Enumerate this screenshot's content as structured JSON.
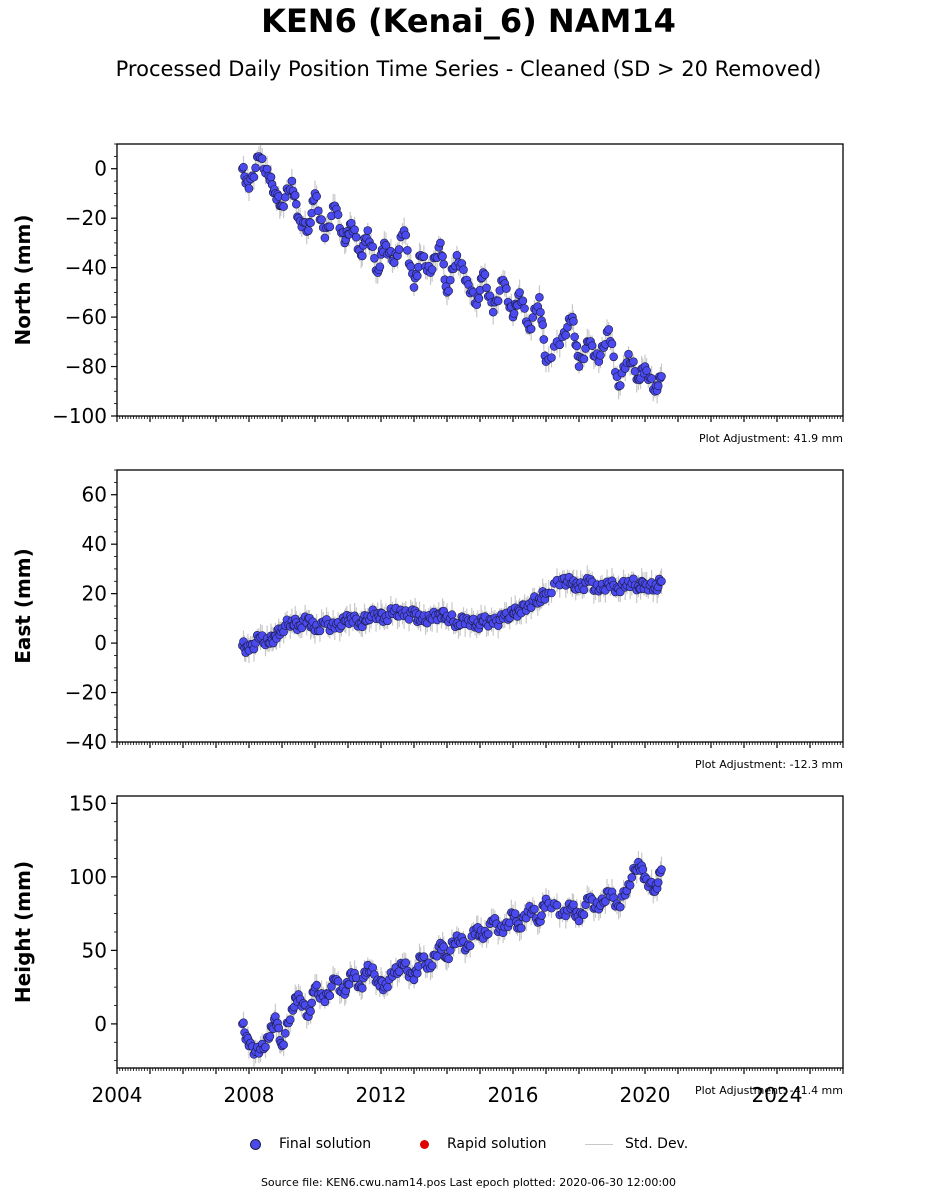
{
  "title": "KEN6 (Kenai_6) NAM14",
  "subtitle": "Processed Daily Position Time Series - Cleaned (SD > 20 Removed)",
  "legend": {
    "final": "Final solution",
    "rapid": "Rapid solution",
    "std": "Std. Dev."
  },
  "source": "Source file: KEN6.cwu.nam14.pos  Last epoch plotted: 2020-06-30 12:00:00",
  "colors": {
    "final": "#4a4af0",
    "rapid": "#e00000",
    "std": "#c8c8c8",
    "edge": "#1a1a3a"
  },
  "chart_data": [
    {
      "type": "scatter",
      "ylabel": "North (mm)",
      "xlim": [
        2004,
        2026
      ],
      "ylim": [
        -100,
        10
      ],
      "yticks": [
        -100,
        -80,
        -60,
        -40,
        -20,
        0
      ],
      "adjustment": "Plot Adjustment: 41.9 mm",
      "series": [
        {
          "name": "Final solution",
          "x": [
            2007.8,
            2008.0,
            2008.3,
            2008.6,
            2008.8,
            2009.0,
            2009.3,
            2009.5,
            2009.8,
            2010.0,
            2010.3,
            2010.6,
            2010.9,
            2011.1,
            2011.4,
            2011.6,
            2011.9,
            2012.1,
            2012.4,
            2012.7,
            2013.0,
            2013.2,
            2013.5,
            2013.8,
            2014.0,
            2014.3,
            2014.6,
            2014.9,
            2015.1,
            2015.4,
            2015.7,
            2016.0,
            2016.2,
            2016.5,
            2016.8,
            2017.0,
            2017.5,
            2017.8,
            2018.0,
            2018.3,
            2018.6,
            2018.9,
            2019.2,
            2019.5,
            2019.8,
            2020.0,
            2020.3,
            2020.5
          ],
          "y": [
            0,
            -8,
            5,
            -3,
            -10,
            -15,
            -5,
            -20,
            -25,
            -10,
            -28,
            -15,
            -30,
            -22,
            -35,
            -25,
            -42,
            -30,
            -38,
            -25,
            -48,
            -35,
            -42,
            -30,
            -50,
            -35,
            -45,
            -55,
            -42,
            -58,
            -45,
            -60,
            -50,
            -65,
            -52,
            -78,
            -68,
            -60,
            -80,
            -70,
            -78,
            -65,
            -88,
            -75,
            -85,
            -80,
            -90,
            -84
          ]
        }
      ]
    },
    {
      "type": "scatter",
      "ylabel": "East (mm)",
      "xlim": [
        2004,
        2026
      ],
      "ylim": [
        -40,
        70
      ],
      "yticks": [
        -40,
        -20,
        0,
        20,
        40,
        60
      ],
      "adjustment": "Plot Adjustment: -12.3 mm",
      "series": [
        {
          "name": "Final solution",
          "x": [
            2007.8,
            2008.0,
            2008.3,
            2008.6,
            2008.8,
            2009.0,
            2009.3,
            2009.5,
            2009.8,
            2010.0,
            2010.3,
            2010.6,
            2010.9,
            2011.1,
            2011.4,
            2011.6,
            2011.9,
            2012.1,
            2012.4,
            2012.7,
            2013.0,
            2013.2,
            2013.5,
            2013.8,
            2014.0,
            2014.3,
            2014.6,
            2014.9,
            2015.1,
            2015.4,
            2015.7,
            2016.0,
            2016.2,
            2016.5,
            2016.8,
            2017.0,
            2017.5,
            2017.8,
            2018.0,
            2018.3,
            2018.6,
            2018.9,
            2019.2,
            2019.5,
            2019.8,
            2020.0,
            2020.3,
            2020.5
          ],
          "y": [
            -1,
            -3,
            2,
            0,
            3,
            6,
            9,
            7,
            10,
            5,
            8,
            6,
            9,
            10,
            8,
            11,
            12,
            10,
            13,
            11,
            12,
            9,
            10,
            12,
            11,
            8,
            10,
            7,
            9,
            8,
            10,
            12,
            13,
            16,
            18,
            20,
            26,
            24,
            22,
            25,
            21,
            24,
            22,
            25,
            23,
            24,
            22,
            25
          ]
        }
      ]
    },
    {
      "type": "scatter",
      "ylabel": "Height (mm)",
      "xlim": [
        2004,
        2026
      ],
      "ylim": [
        -30,
        155
      ],
      "yticks": [
        0,
        50,
        100,
        150
      ],
      "xticks": [
        2004,
        2008,
        2012,
        2016,
        2020,
        2024
      ],
      "adjustment": "Plot Adjustment: -41.4 mm",
      "series": [
        {
          "name": "Final solution",
          "x": [
            2007.8,
            2008.0,
            2008.3,
            2008.6,
            2008.8,
            2009.0,
            2009.3,
            2009.5,
            2009.8,
            2010.0,
            2010.3,
            2010.6,
            2010.9,
            2011.1,
            2011.4,
            2011.6,
            2011.9,
            2012.1,
            2012.4,
            2012.7,
            2013.0,
            2013.2,
            2013.5,
            2013.8,
            2014.0,
            2014.3,
            2014.6,
            2014.9,
            2015.1,
            2015.4,
            2015.7,
            2016.0,
            2016.2,
            2016.5,
            2016.8,
            2017.0,
            2017.5,
            2017.8,
            2018.0,
            2018.3,
            2018.6,
            2018.9,
            2019.2,
            2019.5,
            2019.8,
            2020.0,
            2020.3,
            2020.5
          ],
          "y": [
            0,
            -15,
            -20,
            -10,
            5,
            -15,
            10,
            20,
            5,
            25,
            15,
            30,
            20,
            35,
            25,
            40,
            30,
            25,
            35,
            40,
            30,
            45,
            38,
            55,
            45,
            60,
            52,
            65,
            58,
            70,
            62,
            75,
            65,
            80,
            70,
            85,
            75,
            80,
            70,
            85,
            78,
            90,
            80,
            95,
            110,
            100,
            90,
            105
          ]
        }
      ]
    }
  ]
}
